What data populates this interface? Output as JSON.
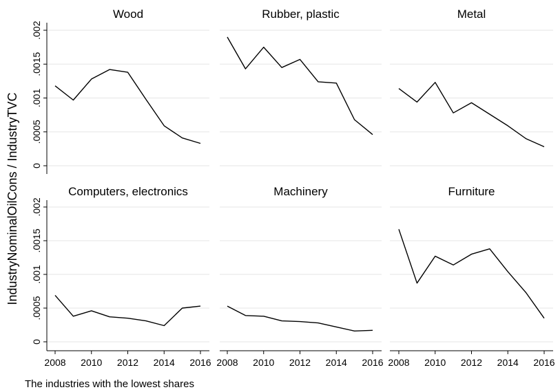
{
  "chart_data": {
    "type": "line",
    "ylabel": "IndustryNominalOilCons / IndustryTVC",
    "note": "The industries with the lowest shares",
    "ylim": [
      0,
      0.002
    ],
    "yticks": [
      {
        "value": 0,
        "label": "0"
      },
      {
        "value": 0.0005,
        "label": ".0005"
      },
      {
        "value": 0.001,
        "label": ".001"
      },
      {
        "value": 0.0015,
        "label": ".0015"
      },
      {
        "value": 0.002,
        "label": ".002"
      }
    ],
    "xlim": [
      2008,
      2016
    ],
    "xticks": [
      {
        "value": 2008,
        "label": "2008"
      },
      {
        "value": 2010,
        "label": "2010"
      },
      {
        "value": 2012,
        "label": "2012"
      },
      {
        "value": 2014,
        "label": "2014"
      },
      {
        "value": 2016,
        "label": "2016"
      }
    ],
    "x": [
      2008,
      2009,
      2010,
      2011,
      2012,
      2013,
      2014,
      2015,
      2016
    ],
    "grid": "horizontal",
    "panels": [
      {
        "title": "Wood",
        "values": [
          0.00118,
          0.00097,
          0.00128,
          0.00142,
          0.00138,
          0.00098,
          0.00059,
          0.00041,
          0.00033
        ]
      },
      {
        "title": "Rubber, plastic",
        "values": [
          0.0019,
          0.00143,
          0.00175,
          0.00145,
          0.00157,
          0.00124,
          0.00122,
          0.00068,
          0.00046
        ]
      },
      {
        "title": "Metal",
        "values": [
          0.00114,
          0.00094,
          0.00123,
          0.00078,
          0.00093,
          0.00076,
          0.00059,
          0.0004,
          0.00028
        ]
      },
      {
        "title": "Computers, electronics",
        "values": [
          0.00069,
          0.00038,
          0.00046,
          0.00037,
          0.00035,
          0.00031,
          0.00024,
          0.0005,
          0.00053
        ]
      },
      {
        "title": "Machinery",
        "values": [
          0.00053,
          0.00039,
          0.00038,
          0.00031,
          0.0003,
          0.00028,
          0.00022,
          0.00016,
          0.00017
        ]
      },
      {
        "title": "Furniture",
        "values": [
          0.00167,
          0.00087,
          0.00127,
          0.00114,
          0.0013,
          0.00138,
          0.00104,
          0.00073,
          0.00035
        ]
      }
    ]
  }
}
